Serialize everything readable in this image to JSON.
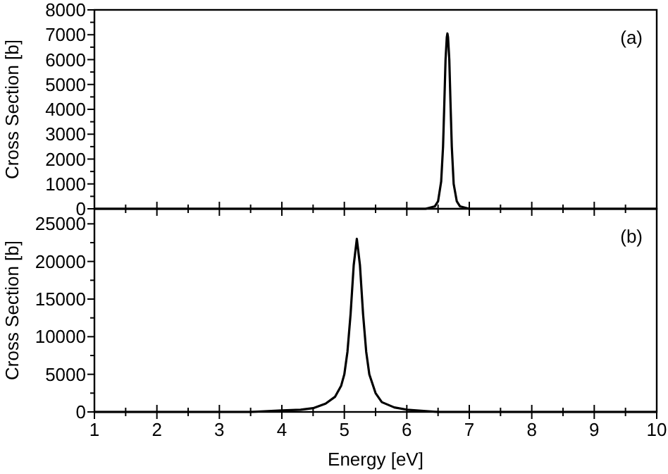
{
  "chart_data": [
    {
      "type": "line",
      "ylabel": "Cross Section [b]",
      "annotations": [
        "(a)"
      ],
      "tick_labels": "y",
      "line_style": "solid",
      "xlim": [
        1,
        10
      ],
      "xticks": [
        1,
        {
          "value": 1.5,
          "label": null
        },
        2,
        {
          "value": 2.5,
          "label": null
        },
        3,
        {
          "value": 3.5,
          "label": null
        },
        4,
        {
          "value": 4.5,
          "label": null
        },
        5,
        {
          "value": 5.5,
          "label": null
        },
        6,
        {
          "value": 6.5,
          "label": null
        },
        7,
        {
          "value": 7.5,
          "label": null
        },
        8,
        {
          "value": 8.5,
          "label": null
        },
        9,
        {
          "value": 9.5,
          "label": null
        },
        10
      ],
      "ylim": [
        0,
        8000
      ],
      "yticks": [
        0,
        {
          "value": 500,
          "label": null
        },
        1000,
        {
          "value": 1500,
          "label": null
        },
        2000,
        {
          "value": 2500,
          "label": null
        },
        3000,
        {
          "value": 3500,
          "label": null
        },
        4000,
        {
          "value": 4500,
          "label": null
        },
        5000,
        {
          "value": 5500,
          "label": null
        },
        6000,
        {
          "value": 6500,
          "label": null
        },
        7000,
        {
          "value": 7500,
          "label": null
        },
        8000
      ],
      "series": [
        {
          "color": "#000000",
          "x": [
            1,
            5,
            6,
            6.3,
            6.45,
            6.5,
            6.55,
            6.58,
            6.6,
            6.62,
            6.64,
            6.65,
            6.66,
            6.68,
            6.7,
            6.72,
            6.75,
            6.8,
            6.85,
            7,
            8,
            10
          ],
          "values": [
            0,
            0,
            0,
            0,
            100,
            300,
            1100,
            2500,
            4200,
            6000,
            6900,
            7050,
            6900,
            6000,
            4200,
            2500,
            1000,
            300,
            100,
            0,
            0,
            0
          ]
        }
      ]
    },
    {
      "type": "line",
      "xlabel": "Energy [eV]",
      "ylabel": "Cross Section [b]",
      "annotations": [
        "(b)"
      ],
      "line_style": "solid",
      "xlim": [
        1,
        10
      ],
      "xticks": [
        1,
        {
          "value": 1.5,
          "label": null
        },
        2,
        {
          "value": 2.5,
          "label": null
        },
        3,
        {
          "value": 3.5,
          "label": null
        },
        4,
        {
          "value": 4.5,
          "label": null
        },
        5,
        {
          "value": 5.5,
          "label": null
        },
        6,
        {
          "value": 6.5,
          "label": null
        },
        7,
        {
          "value": 7.5,
          "label": null
        },
        8,
        {
          "value": 8.5,
          "label": null
        },
        9,
        {
          "value": 9.5,
          "label": null
        },
        10
      ],
      "ylim": [
        0,
        27000
      ],
      "yticks": [
        0,
        {
          "value": 2500,
          "label": null
        },
        5000,
        {
          "value": 7500,
          "label": null
        },
        10000,
        {
          "value": 12500,
          "label": null
        },
        15000,
        {
          "value": 17500,
          "label": null
        },
        20000,
        {
          "value": 22500,
          "label": null
        },
        25000
      ],
      "series": [
        {
          "color": "#000000",
          "x": [
            1,
            3,
            3.5,
            4,
            4.3,
            4.5,
            4.7,
            4.85,
            4.95,
            5,
            5.05,
            5.1,
            5.15,
            5.2,
            5.25,
            5.3,
            5.35,
            5.4,
            5.5,
            5.6,
            5.8,
            6,
            6.5,
            7,
            8,
            10
          ],
          "values": [
            0,
            0,
            0,
            200,
            300,
            500,
            1100,
            2000,
            3500,
            5000,
            8000,
            13000,
            19500,
            23000,
            19500,
            13000,
            8000,
            5000,
            2500,
            1300,
            600,
            300,
            0,
            0,
            0,
            0
          ]
        }
      ]
    }
  ]
}
